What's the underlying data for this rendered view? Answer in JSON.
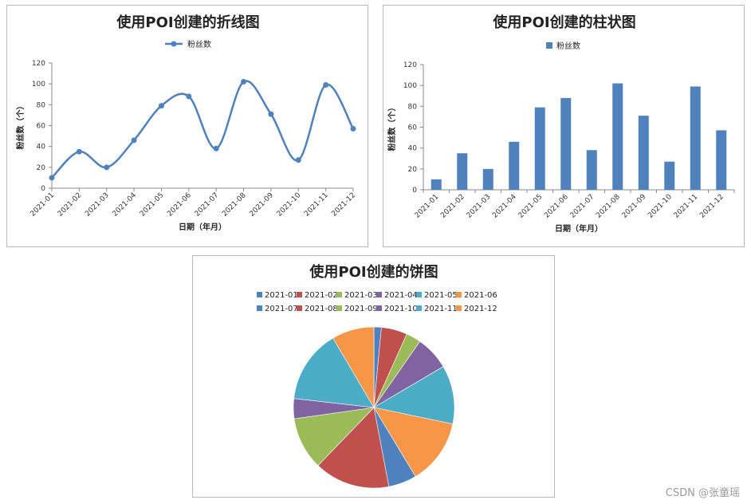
{
  "chart_data": [
    {
      "type": "line",
      "title": "使用POI创建的折线图",
      "xlabel": "日期（年月）",
      "ylabel": "粉丝数（个）",
      "categories": [
        "2021-01",
        "2021-02",
        "2021-03",
        "2021-04",
        "2021-05",
        "2021-06",
        "2021-07",
        "2021-08",
        "2021-09",
        "2021-10",
        "2021-11",
        "2021-12"
      ],
      "series": [
        {
          "name": "粉丝数",
          "values": [
            10,
            35,
            20,
            46,
            79,
            88,
            38,
            102,
            71,
            27,
            99,
            57
          ]
        }
      ],
      "ylim": [
        0,
        120
      ],
      "yticks": [
        0,
        20,
        40,
        60,
        80,
        100,
        120
      ],
      "legend": "top",
      "grid": false,
      "smooth": true,
      "color": "#4f81bd"
    },
    {
      "type": "bar",
      "title": "使用POI创建的柱状图",
      "xlabel": "日期（年月）",
      "ylabel": "粉丝数（个）",
      "categories": [
        "2021-01",
        "2021-02",
        "2021-03",
        "2021-04",
        "2021-05",
        "2021-06",
        "2021-07",
        "2021-08",
        "2021-09",
        "2021-10",
        "2021-11",
        "2021-12"
      ],
      "series": [
        {
          "name": "粉丝数",
          "values": [
            10,
            35,
            20,
            46,
            79,
            88,
            38,
            102,
            71,
            27,
            99,
            57
          ]
        }
      ],
      "ylim": [
        0,
        120
      ],
      "yticks": [
        0,
        20,
        40,
        60,
        80,
        100,
        120
      ],
      "legend": "top",
      "grid": false,
      "color": "#4f81bd"
    },
    {
      "type": "pie",
      "title": "使用POI创建的饼图",
      "categories": [
        "2021-01",
        "2021-02",
        "2021-03",
        "2021-04",
        "2021-05",
        "2021-06",
        "2021-07",
        "2021-08",
        "2021-09",
        "2021-10",
        "2021-11",
        "2021-12"
      ],
      "values": [
        10,
        35,
        20,
        46,
        79,
        88,
        38,
        102,
        71,
        27,
        99,
        57
      ],
      "colors": [
        "#4f81bd",
        "#c0504d",
        "#9bbb59",
        "#8064a2",
        "#4bacc6",
        "#f79646",
        "#4f81bd",
        "#c0504d",
        "#9bbb59",
        "#8064a2",
        "#4bacc6",
        "#f79646"
      ],
      "legend": "top"
    }
  ],
  "watermark": "CSDN @张童瑶"
}
